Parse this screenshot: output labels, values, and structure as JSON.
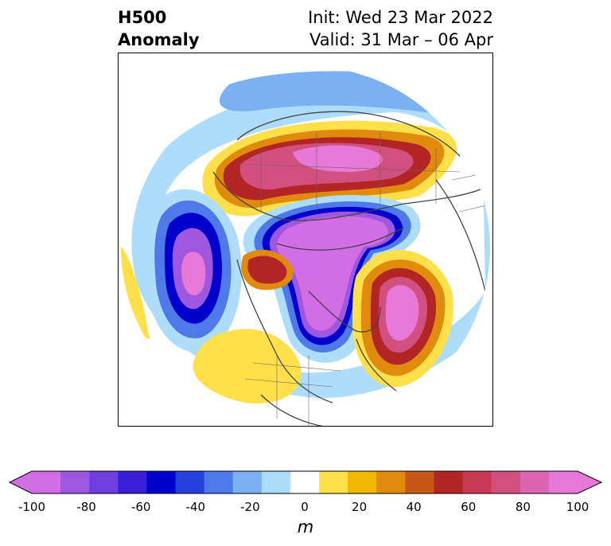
{
  "title": {
    "left_line1": "H500",
    "left_line2": "Anomaly",
    "right_line1": "Init: Wed 23 Mar 2022",
    "right_line2": "Valid: 31 Mar – 06 Apr"
  },
  "colorbar": {
    "unit": "m",
    "ticks": [
      "-100",
      "-80",
      "-60",
      "-40",
      "-20",
      "0",
      "20",
      "40",
      "60",
      "80",
      "100"
    ],
    "levels": [
      -100,
      -90,
      -80,
      -70,
      -60,
      -50,
      -40,
      -30,
      -20,
      -10,
      10,
      20,
      30,
      40,
      50,
      60,
      70,
      80,
      90,
      100
    ],
    "colors": [
      "#d26de6",
      "#9f57df",
      "#6d3ee0",
      "#3a1fd6",
      "#0000cd",
      "#2540db",
      "#4f79e8",
      "#7bb0f2",
      "#aedcfb",
      "#ffffff",
      "#ffe04a",
      "#f2b800",
      "#e08a0e",
      "#c85818",
      "#b32424",
      "#c83a54",
      "#d25080",
      "#dc64b0",
      "#e878d8"
    ]
  }
}
